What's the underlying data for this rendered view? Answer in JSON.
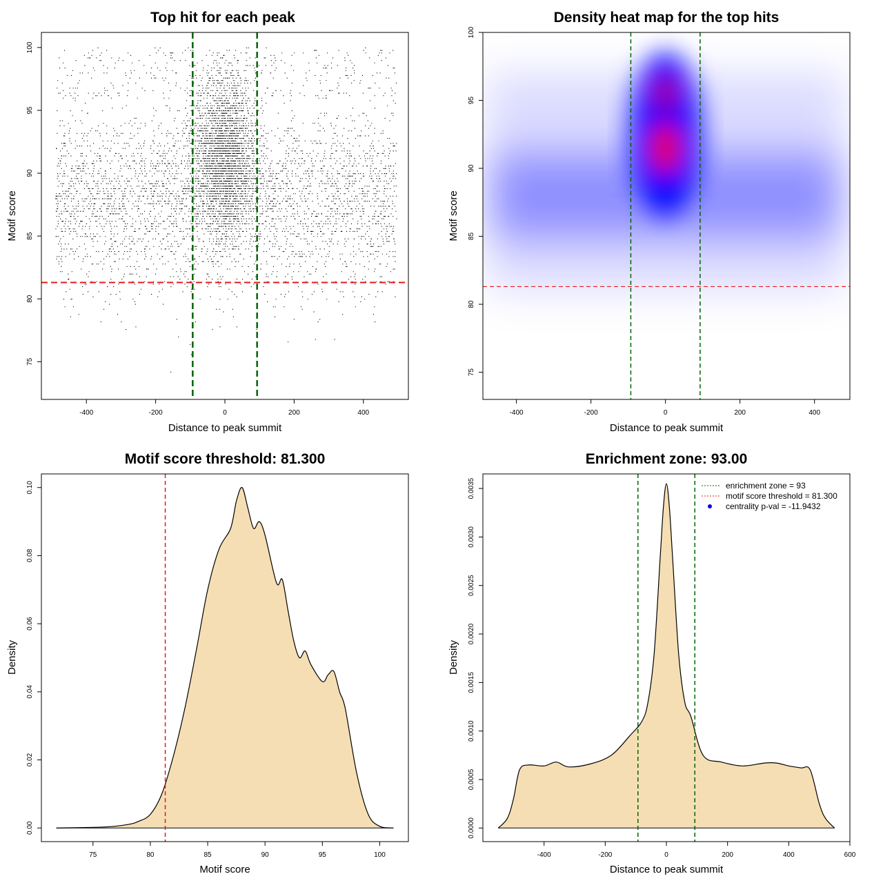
{
  "colors": {
    "threshold_line": "#e31a1c",
    "zone_line": "#006400",
    "density_fill": "#f5deb3",
    "heat_low": "#ffffff",
    "heat_mid": "#0000ff",
    "heat_high": "#ff0000",
    "point": "#000000",
    "legend_point": "#0000ff"
  },
  "chart_data": [
    {
      "id": "p1",
      "type": "scatter",
      "title": "Top hit for each peak",
      "xlabel": "Distance to peak summit",
      "ylabel": "Motif score",
      "xlim": [
        -530,
        530
      ],
      "ylim": [
        72,
        101.2
      ],
      "xticks": [
        -400,
        -200,
        0,
        200,
        400
      ],
      "yticks": [
        75,
        80,
        85,
        90,
        95,
        100
      ],
      "threshold_y": 81.3,
      "zone_x": [
        -93,
        93
      ],
      "point_distribution": {
        "x_range": [
          -490,
          495
        ],
        "background_y_mean": 87.8,
        "central_y_mean": 91.5,
        "central_x_sd": 45,
        "score_max": 100
      }
    },
    {
      "id": "p2",
      "type": "heatmap",
      "title": "Density heat map for the top hits",
      "xlabel": "Distance to peak summit",
      "ylabel": "Motif score",
      "xlim": [
        -490,
        495
      ],
      "ylim": [
        73,
        100
      ],
      "xticks": [
        -400,
        -200,
        0,
        200,
        400
      ],
      "yticks": [
        75,
        80,
        85,
        90,
        95,
        100
      ],
      "threshold_y": 81.3,
      "zone_x": [
        -93,
        93
      ],
      "peak": {
        "x": 0,
        "y": 91.5
      },
      "secondary_peak": {
        "x": 0,
        "y": 95.5
      }
    },
    {
      "id": "p3",
      "type": "area",
      "title": "Motif score threshold: 81.300",
      "xlabel": "Motif score",
      "ylabel": "Density",
      "xlim": [
        70.5,
        102.5
      ],
      "ylim": [
        -0.004,
        0.104
      ],
      "xticks": [
        75,
        80,
        85,
        90,
        95,
        100
      ],
      "yticks": [
        0.0,
        0.02,
        0.04,
        0.06,
        0.08,
        0.1
      ],
      "ytick_labels": [
        "0.00",
        "0.02",
        "0.04",
        "0.06",
        "0.08",
        "0.10"
      ],
      "threshold_x": 81.3,
      "x": [
        71.8,
        76,
        78,
        79,
        80,
        81,
        82,
        83,
        84,
        85,
        86,
        87,
        87.5,
        88,
        88.5,
        89,
        89.5,
        90,
        91,
        91.5,
        92,
        92.5,
        93,
        93.5,
        94,
        95,
        95.5,
        96,
        96.5,
        97,
        98,
        99,
        100,
        101.2
      ],
      "values": [
        0.0,
        0.0003,
        0.001,
        0.002,
        0.004,
        0.01,
        0.021,
        0.035,
        0.052,
        0.07,
        0.082,
        0.088,
        0.096,
        0.1,
        0.094,
        0.088,
        0.09,
        0.086,
        0.072,
        0.073,
        0.064,
        0.055,
        0.05,
        0.052,
        0.048,
        0.043,
        0.045,
        0.046,
        0.04,
        0.035,
        0.016,
        0.004,
        0.0005,
        0.0
      ]
    },
    {
      "id": "p4",
      "type": "area",
      "title": "Enrichment zone: 93.00",
      "xlabel": "Distance to peak summit",
      "ylabel": "Density",
      "xlim": [
        -600,
        600
      ],
      "ylim": [
        -0.00014,
        0.00365
      ],
      "xticks": [
        -400,
        -200,
        0,
        200,
        400,
        600
      ],
      "yticks": [
        0.0,
        0.0005,
        0.001,
        0.0015,
        0.002,
        0.0025,
        0.003,
        0.0035
      ],
      "ytick_labels": [
        "0.0000",
        "0.0005",
        "0.0010",
        "0.0015",
        "0.0020",
        "0.0025",
        "0.0030",
        "0.0035"
      ],
      "zone_x": [
        -93,
        93
      ],
      "x": [
        -550,
        -520,
        -500,
        -480,
        -450,
        -400,
        -360,
        -320,
        -250,
        -180,
        -120,
        -80,
        -60,
        -40,
        -20,
        -10,
        0,
        10,
        20,
        40,
        60,
        80,
        120,
        180,
        250,
        320,
        360,
        400,
        440,
        470,
        500,
        520,
        550
      ],
      "values": [
        0.0,
        0.0001,
        0.0003,
        0.0006,
        0.00065,
        0.00064,
        0.00068,
        0.00063,
        0.00066,
        0.00075,
        0.00095,
        0.0011,
        0.0013,
        0.0018,
        0.0028,
        0.0033,
        0.00355,
        0.0033,
        0.0028,
        0.0018,
        0.0013,
        0.00115,
        0.00075,
        0.00068,
        0.00064,
        0.00067,
        0.00067,
        0.00064,
        0.00062,
        0.0006,
        0.00025,
        0.0001,
        0.0
      ],
      "legend": [
        {
          "label": "enrichment zone = 93",
          "style": "line",
          "color": "#006400"
        },
        {
          "label": "motif score threshold = 81.300",
          "style": "line",
          "color": "#e31a1c"
        },
        {
          "label": "centrality p-val = -11.9432",
          "style": "point",
          "color": "#0000ff"
        }
      ]
    }
  ]
}
